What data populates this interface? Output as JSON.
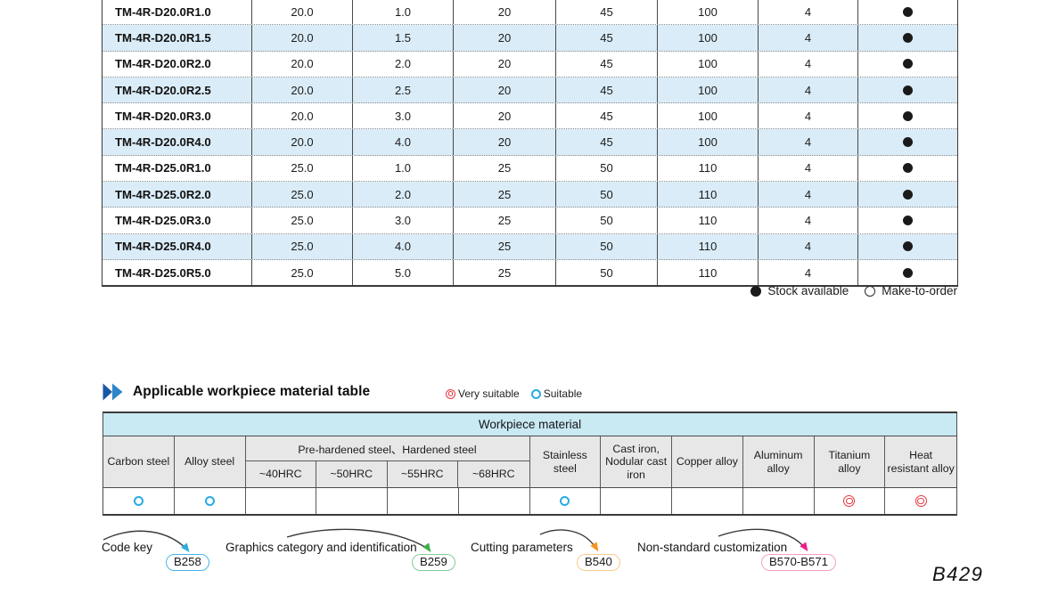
{
  "size_table": {
    "rows": [
      {
        "model": "TM-4R-D20.0R1.0",
        "values": [
          "20.0",
          "1.0",
          "20",
          "45",
          "100",
          "4"
        ],
        "stock": "available"
      },
      {
        "model": "TM-4R-D20.0R1.5",
        "values": [
          "20.0",
          "1.5",
          "20",
          "45",
          "100",
          "4"
        ],
        "stock": "available"
      },
      {
        "model": "TM-4R-D20.0R2.0",
        "values": [
          "20.0",
          "2.0",
          "20",
          "45",
          "100",
          "4"
        ],
        "stock": "available"
      },
      {
        "model": "TM-4R-D20.0R2.5",
        "values": [
          "20.0",
          "2.5",
          "20",
          "45",
          "100",
          "4"
        ],
        "stock": "available"
      },
      {
        "model": "TM-4R-D20.0R3.0",
        "values": [
          "20.0",
          "3.0",
          "20",
          "45",
          "100",
          "4"
        ],
        "stock": "available"
      },
      {
        "model": "TM-4R-D20.0R4.0",
        "values": [
          "20.0",
          "4.0",
          "20",
          "45",
          "100",
          "4"
        ],
        "stock": "available"
      },
      {
        "model": "TM-4R-D25.0R1.0",
        "values": [
          "25.0",
          "1.0",
          "25",
          "50",
          "110",
          "4"
        ],
        "stock": "available"
      },
      {
        "model": "TM-4R-D25.0R2.0",
        "values": [
          "25.0",
          "2.0",
          "25",
          "50",
          "110",
          "4"
        ],
        "stock": "available"
      },
      {
        "model": "TM-4R-D25.0R3.0",
        "values": [
          "25.0",
          "3.0",
          "25",
          "50",
          "110",
          "4"
        ],
        "stock": "available"
      },
      {
        "model": "TM-4R-D25.0R4.0",
        "values": [
          "25.0",
          "4.0",
          "25",
          "50",
          "110",
          "4"
        ],
        "stock": "available"
      },
      {
        "model": "TM-4R-D25.0R5.0",
        "values": [
          "25.0",
          "5.0",
          "25",
          "50",
          "110",
          "4"
        ],
        "stock": "available"
      }
    ]
  },
  "stock_legend": {
    "available_icon": "filled-circle-icon",
    "available_label": "Stock available",
    "mto_icon": "open-circle-icon",
    "mto_label": "Make-to-order"
  },
  "material_section": {
    "heading_icon": "double-chevron-right-icon",
    "title": "Applicable workpiece material table",
    "legend": {
      "very_icon": "double-circle-icon",
      "very_label": "Very suitable",
      "suitable_icon": "circle-icon",
      "suitable_label": "Suitable"
    },
    "table": {
      "header": "Workpiece material",
      "columns": {
        "carbon": "Carbon steel",
        "alloy": "Alloy steel",
        "prehardened_group": "Pre-hardened steel、Hardened steel",
        "hrc": [
          "~40HRC",
          "~50HRC",
          "~55HRC",
          "~68HRC"
        ],
        "stainless": "Stainless steel",
        "cast_iron": "Cast iron, Nodular cast iron",
        "copper": "Copper alloy",
        "aluminum": "Aluminum alloy",
        "titanium": "Titanium alloy",
        "heat": "Heat resistant alloy"
      },
      "ratings": [
        "suitable",
        "suitable",
        "",
        "",
        "",
        "",
        "suitable",
        "",
        "",
        "",
        "very_suitable",
        "very_suitable"
      ]
    }
  },
  "footer_links": [
    {
      "label": "Code key",
      "page": "B258",
      "arrow_color": "#2bace2",
      "badge_color": "#45b5e7"
    },
    {
      "label": "Graphics category and identification",
      "page": "B259",
      "arrow_color": "#3fae49",
      "badge_color": "#82cb9a"
    },
    {
      "label": "Cutting parameters",
      "page": "B540",
      "arrow_color": "#f7941d",
      "badge_color": "#f8c98c"
    },
    {
      "label": "Non-standard customization",
      "page": "B570-B571",
      "arrow_color": "#ec1e8c",
      "badge_color": "#f2a0c5"
    }
  ],
  "colors": {
    "row_alt": "#daecf7",
    "band": "#c9e9f3",
    "header_gray": "#e7e7e7",
    "suitable": "#29abe2",
    "very_suitable": "#e8383d"
  },
  "page_number": "B429"
}
